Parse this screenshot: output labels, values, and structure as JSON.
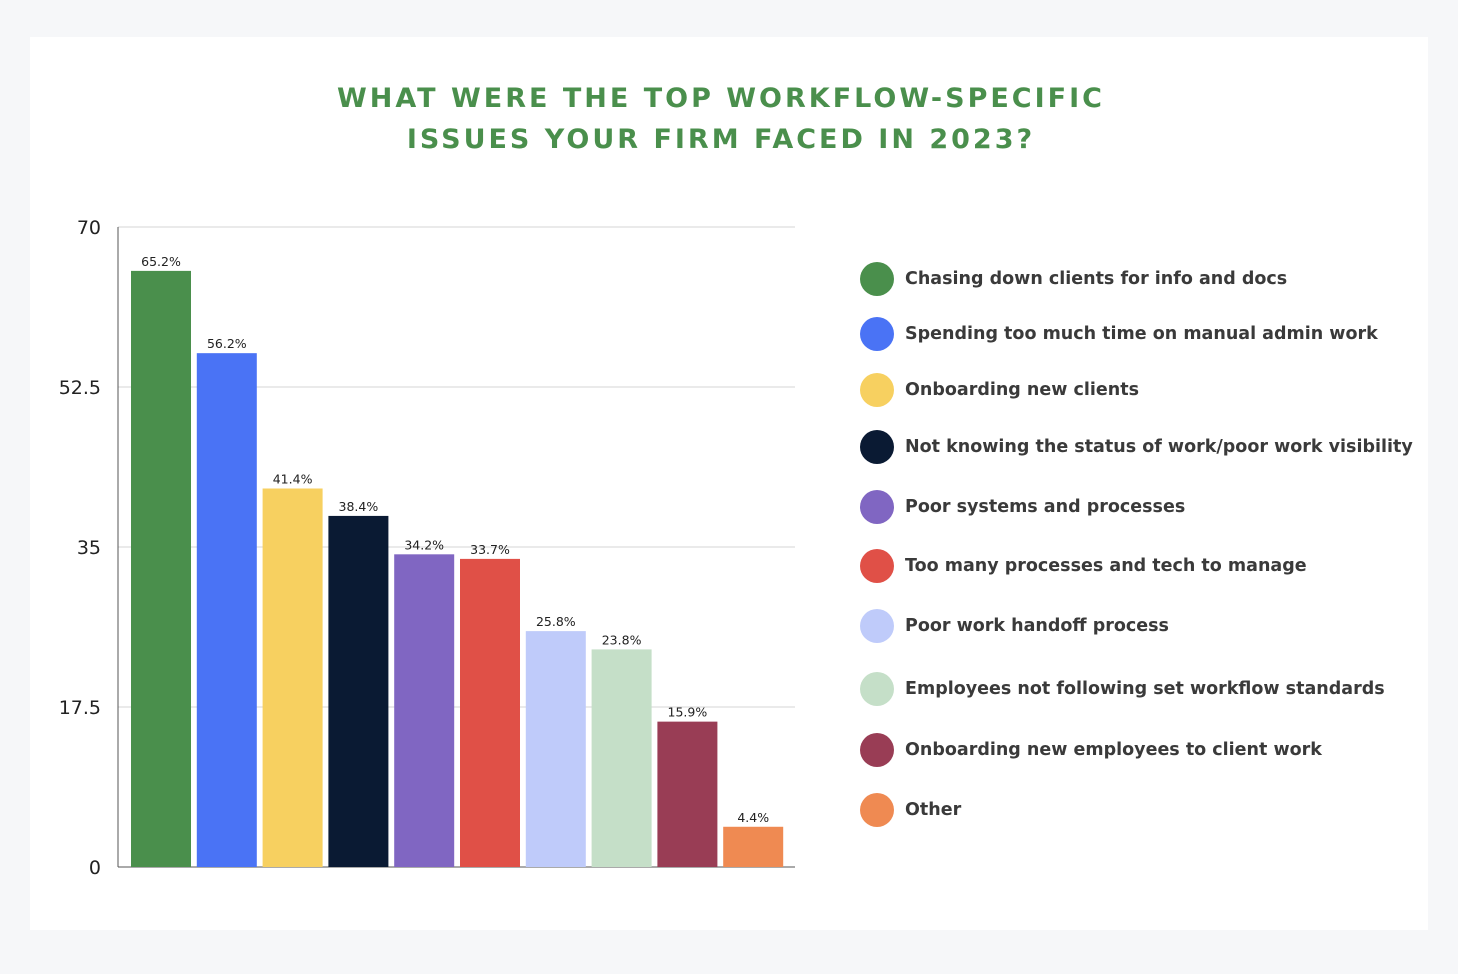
{
  "title_lines": [
    "WHAT WERE THE TOP WORKFLOW-SPECIFIC",
    "ISSUES YOUR FIRM FACED IN 2023?"
  ],
  "chart_data": {
    "type": "bar",
    "title": "WHAT WERE THE TOP WORKFLOW-SPECIFIC ISSUES YOUR FIRM FACED IN 2023?",
    "categories": [
      "Chasing down clients for info and docs",
      "Spending too much time on manual admin work",
      "Onboarding new clients",
      "Not knowing the status of work/poor work visibility",
      "Poor systems and processes",
      "Too many processes and tech to manage",
      "Poor work handoff process",
      "Employees not following set workflow standards",
      "Onboarding new employees to client work",
      "Other"
    ],
    "values": [
      65.2,
      56.2,
      41.4,
      38.4,
      34.2,
      33.7,
      25.8,
      23.8,
      15.9,
      4.4
    ],
    "value_labels": [
      "65.2%",
      "56.2%",
      "41.4%",
      "38.4%",
      "34.2%",
      "33.7%",
      "25.8%",
      "23.8%",
      "15.9%",
      "4.4%"
    ],
    "colors": [
      "#4a8f4c",
      "#4a73f5",
      "#f7d060",
      "#0a1a33",
      "#8066c2",
      "#e05047",
      "#bfcbfa",
      "#c5dfc8",
      "#993d55",
      "#ef8a52"
    ],
    "ylim": [
      0,
      70
    ],
    "yticks": [
      0,
      17.5,
      35,
      52.5,
      70
    ],
    "ytick_labels": [
      "0",
      "17.5",
      "35",
      "52.5",
      "70"
    ],
    "xlabel": "",
    "ylabel": "",
    "grid": true,
    "legend_position": "right"
  }
}
